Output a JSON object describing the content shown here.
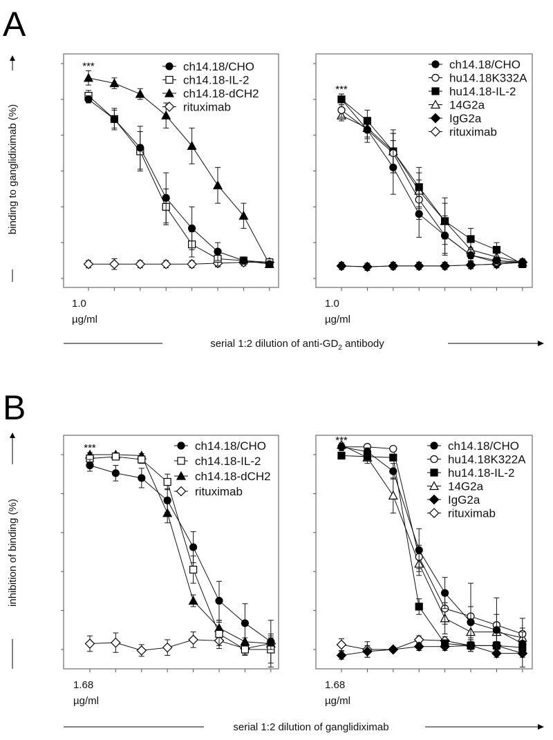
{
  "figure": {
    "panel_A_label": "A",
    "panel_B_label": "B",
    "ylabel_A": "binding to ganglidiximab (%)",
    "ylabel_B": "inhibition of binding (%)",
    "xlabel_A_prefix": "serial 1:2 dilution of anti-GD",
    "xlabel_A_sub": "2",
    "xlabel_A_suffix": " antibody",
    "xlabel_B": "serial 1:2 dilution of ganglidiximab",
    "significance": "***"
  },
  "chart_data": [
    {
      "type": "line",
      "id": "A-left",
      "xstart_label": "1.0",
      "xunit_label": "µg/ml",
      "ylim": [
        -7,
        124
      ],
      "yticks": [
        "0",
        "20",
        "40",
        "60",
        "80",
        "100",
        "120"
      ],
      "ytick_values": [
        0,
        20,
        40,
        60,
        80,
        100,
        120
      ],
      "x": [
        1,
        2,
        3,
        4,
        5,
        6,
        7,
        8
      ],
      "series": [
        {
          "name": "ch14.18/CHO",
          "marker": "circle-filled",
          "values": [
            100,
            89,
            73,
            45,
            28,
            15,
            10,
            8
          ],
          "err": [
            2,
            5,
            12,
            14,
            12,
            5,
            2,
            1
          ]
        },
        {
          "name": "ch14.18-IL-2",
          "marker": "square-open",
          "values": [
            102,
            89,
            71,
            40,
            19,
            11,
            10,
            9
          ],
          "err": [
            3,
            6,
            11,
            10,
            7,
            4,
            2,
            1
          ]
        },
        {
          "name": "ch14.18-dCH2",
          "marker": "triangle-filled",
          "values": [
            112,
            109,
            103,
            91,
            74,
            52,
            35,
            8
          ],
          "err": [
            4,
            3,
            3,
            7,
            10,
            10,
            7,
            1
          ]
        },
        {
          "name": "rituximab",
          "marker": "diamond-open",
          "values": [
            8,
            8,
            8,
            8,
            8,
            8.5,
            9,
            9
          ],
          "err": [
            2,
            3,
            2,
            2,
            2,
            2,
            2,
            1
          ]
        }
      ]
    },
    {
      "type": "line",
      "id": "A-right",
      "xstart_label": "1.0",
      "xunit_label": "µg/ml",
      "ylim": [
        -7,
        124
      ],
      "yticks": [
        "0",
        "20",
        "40",
        "60",
        "80",
        "100",
        "120"
      ],
      "ytick_values": [
        0,
        20,
        40,
        60,
        80,
        100,
        120
      ],
      "x": [
        1,
        2,
        3,
        4,
        5,
        6,
        7,
        8
      ],
      "series": [
        {
          "name": "ch14.18/CHO",
          "marker": "circle-filled",
          "values": [
            100,
            83,
            62,
            36,
            24,
            13,
            10,
            9
          ],
          "err": [
            3,
            7,
            15,
            13,
            11,
            4,
            2,
            1
          ]
        },
        {
          "name": "hu14.18K332A",
          "marker": "circle-open",
          "values": [
            94,
            83,
            70,
            44,
            24,
            13,
            9,
            9
          ],
          "err": [
            4,
            5,
            11,
            11,
            10,
            3,
            2,
            1
          ]
        },
        {
          "name": "hu14.18-IL-2",
          "marker": "square-filled",
          "values": [
            100,
            88,
            71,
            51,
            32,
            22,
            16,
            8
          ],
          "err": [
            3,
            6,
            12,
            11,
            13,
            6,
            4,
            2
          ]
        },
        {
          "name": "14G2a",
          "marker": "triangle-open",
          "values": [
            91,
            84,
            71,
            49,
            32,
            16,
            12,
            9
          ],
          "err": [
            3,
            5,
            10,
            10,
            10,
            5,
            3,
            2
          ]
        },
        {
          "name": "IgG2a",
          "marker": "diamond-filled",
          "values": [
            7,
            6.5,
            7,
            7,
            7,
            7.5,
            8,
            9
          ],
          "err": [
            2,
            2,
            2,
            2,
            2,
            2,
            2,
            2
          ]
        },
        {
          "name": "rituximab",
          "marker": "diamond-open",
          "values": [
            7,
            6.5,
            7,
            7,
            7,
            7.5,
            8,
            9
          ],
          "err": [
            2,
            2,
            2,
            2,
            2,
            2,
            2,
            2
          ]
        }
      ]
    },
    {
      "type": "line",
      "id": "B-left",
      "xstart_label": "1.68",
      "xunit_label": "µg/ml",
      "ylim": [
        -10,
        110
      ],
      "yticks": [
        "0",
        "20",
        "40",
        "60",
        "80",
        "100"
      ],
      "ytick_values": [
        0,
        20,
        40,
        60,
        80,
        100
      ],
      "x": [
        1,
        2,
        3,
        4,
        5,
        6,
        7,
        8
      ],
      "series": [
        {
          "name": "ch14.18/CHO",
          "marker": "circle-filled",
          "values": [
            94.5,
            90.5,
            88,
            76.5,
            52.5,
            25,
            13.5,
            4
          ],
          "err": [
            3,
            4,
            5,
            6,
            8,
            10,
            10,
            4
          ]
        },
        {
          "name": "ch14.18-IL-2",
          "marker": "square-open",
          "values": [
            98,
            99,
            97.5,
            86,
            41,
            8,
            0,
            0
          ],
          "err": [
            2,
            1,
            2,
            4,
            7,
            6,
            3,
            7
          ]
        },
        {
          "name": "ch14.18-dCH2",
          "marker": "triangle-filled",
          "values": [
            100,
            100,
            99.5,
            70,
            25,
            11,
            4,
            3
          ],
          "err": [
            1,
            1,
            1,
            5,
            3,
            4,
            2,
            3
          ]
        },
        {
          "name": "rituximab",
          "marker": "diamond-open",
          "values": [
            3,
            3.5,
            -0.5,
            1,
            5,
            4.5,
            0.5,
            3
          ],
          "err": [
            4,
            5,
            3,
            4,
            4,
            4,
            3,
            12
          ]
        }
      ]
    },
    {
      "type": "line",
      "id": "B-right",
      "xstart_label": "1.68",
      "xunit_label": "µg/ml",
      "ylim": [
        -10,
        110
      ],
      "yticks": [
        "0",
        "20",
        "40",
        "60",
        "80",
        "100"
      ],
      "ytick_values": [
        0,
        20,
        40,
        60,
        80,
        100
      ],
      "x": [
        1,
        2,
        3,
        4,
        5,
        6,
        7,
        8
      ],
      "series": [
        {
          "name": "ch14.18/CHO",
          "marker": "circle-filled",
          "values": [
            104,
            101.5,
            91.5,
            51,
            29,
            14,
            10,
            3
          ],
          "err": [
            2,
            2,
            4,
            11,
            8,
            8,
            8,
            6
          ]
        },
        {
          "name": "hu14.18K322A",
          "marker": "circle-open",
          "values": [
            104,
            104,
            103,
            47.5,
            21,
            17,
            12.5,
            8
          ],
          "err": [
            1,
            1,
            1,
            6,
            8,
            17,
            14,
            8
          ]
        },
        {
          "name": "hu14.18-IL-2",
          "marker": "square-filled",
          "values": [
            99.5,
            99,
            98.5,
            22,
            3,
            2,
            2,
            1
          ],
          "err": [
            1,
            1,
            1,
            4,
            2,
            2,
            2,
            2
          ]
        },
        {
          "name": "14G2a",
          "marker": "triangle-open",
          "values": [
            105,
            98.5,
            79,
            44,
            16,
            9,
            9,
            6
          ],
          "err": [
            1,
            3,
            9,
            6,
            8,
            5,
            5,
            5
          ]
        },
        {
          "name": "IgG2a",
          "marker": "diamond-filled",
          "values": [
            -3,
            -1,
            0,
            1.5,
            1.5,
            2,
            -2,
            -2
          ],
          "err": [
            2,
            3,
            1,
            2,
            2,
            3,
            2,
            2
          ]
        },
        {
          "name": "rituximab",
          "marker": "diamond-open",
          "values": [
            2.5,
            0,
            0,
            5,
            4.5,
            2,
            2,
            -2
          ],
          "err": [
            3,
            4,
            1,
            2,
            2,
            3,
            2,
            7
          ]
        }
      ]
    }
  ]
}
